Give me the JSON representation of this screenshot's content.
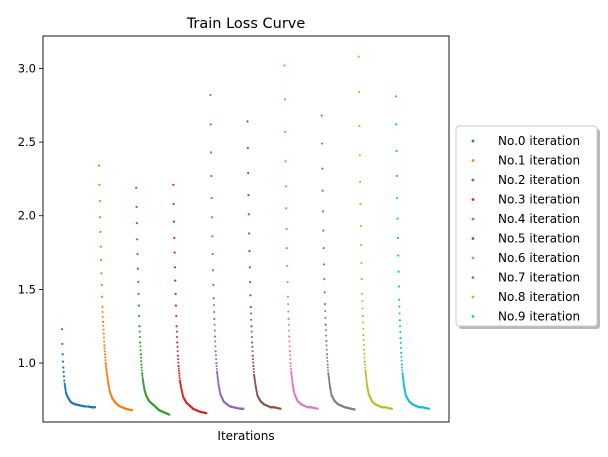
{
  "chart_data": {
    "type": "scatter",
    "title": "Train Loss Curve",
    "xlabel": "Iterations",
    "ylabel": "",
    "ylim": [
      0.6,
      3.22
    ],
    "yticks": [
      1.0,
      1.5,
      2.0,
      2.5,
      3.0
    ],
    "ytick_labels": [
      "1.0",
      "1.5",
      "2.0",
      "2.5",
      "3.0"
    ],
    "xticks": [],
    "grid": false,
    "legend_position": "center-right outside",
    "series": [
      {
        "name": "No.0 iteration",
        "color": "#1f77b4",
        "points": [
          [
            0,
            1.23
          ],
          [
            1,
            1.13
          ],
          [
            2,
            1.06
          ],
          [
            3,
            1.01
          ],
          [
            4,
            0.97
          ],
          [
            5,
            0.94
          ],
          [
            6,
            0.91
          ],
          [
            7,
            0.88
          ],
          [
            8,
            0.86
          ],
          [
            10,
            0.83
          ],
          [
            12,
            0.8
          ],
          [
            15,
            0.78
          ],
          [
            20,
            0.76
          ],
          [
            25,
            0.74
          ],
          [
            30,
            0.73
          ],
          [
            40,
            0.72
          ],
          [
            50,
            0.715
          ],
          [
            60,
            0.71
          ],
          [
            70,
            0.705
          ],
          [
            80,
            0.705
          ],
          [
            90,
            0.7
          ],
          [
            100,
            0.7
          ]
        ]
      },
      {
        "name": "No.1 iteration",
        "color": "#ff7f0e",
        "points": [
          [
            0,
            2.34
          ],
          [
            1,
            2.21
          ],
          [
            2,
            2.1
          ],
          [
            3,
            1.99
          ],
          [
            4,
            1.89
          ],
          [
            5,
            1.79
          ],
          [
            6,
            1.7
          ],
          [
            7,
            1.61
          ],
          [
            8,
            1.53
          ],
          [
            9,
            1.45
          ],
          [
            10,
            1.38
          ],
          [
            12,
            1.28
          ],
          [
            14,
            1.2
          ],
          [
            16,
            1.12
          ],
          [
            18,
            1.06
          ],
          [
            20,
            1.0
          ],
          [
            24,
            0.92
          ],
          [
            28,
            0.86
          ],
          [
            32,
            0.81
          ],
          [
            40,
            0.76
          ],
          [
            50,
            0.73
          ],
          [
            60,
            0.71
          ],
          [
            70,
            0.7
          ],
          [
            80,
            0.69
          ],
          [
            90,
            0.685
          ],
          [
            100,
            0.68
          ]
        ]
      },
      {
        "name": "No.2 iteration",
        "color": "#2ca02c",
        "points": [
          [
            0,
            2.19
          ],
          [
            1,
            2.06
          ],
          [
            2,
            1.95
          ],
          [
            3,
            1.84
          ],
          [
            4,
            1.74
          ],
          [
            5,
            1.64
          ],
          [
            6,
            1.55
          ],
          [
            7,
            1.47
          ],
          [
            8,
            1.39
          ],
          [
            9,
            1.32
          ],
          [
            10,
            1.25
          ],
          [
            12,
            1.14
          ],
          [
            14,
            1.06
          ],
          [
            16,
            0.99
          ],
          [
            18,
            0.93
          ],
          [
            20,
            0.89
          ],
          [
            25,
            0.82
          ],
          [
            30,
            0.78
          ],
          [
            40,
            0.74
          ],
          [
            50,
            0.72
          ],
          [
            60,
            0.7
          ],
          [
            70,
            0.68
          ],
          [
            80,
            0.67
          ],
          [
            90,
            0.66
          ],
          [
            100,
            0.65
          ]
        ]
      },
      {
        "name": "No.3 iteration",
        "color": "#d62728",
        "points": [
          [
            0,
            2.21
          ],
          [
            1,
            2.08
          ],
          [
            2,
            1.96
          ],
          [
            3,
            1.85
          ],
          [
            4,
            1.75
          ],
          [
            5,
            1.65
          ],
          [
            6,
            1.56
          ],
          [
            7,
            1.47
          ],
          [
            8,
            1.39
          ],
          [
            9,
            1.32
          ],
          [
            10,
            1.25
          ],
          [
            12,
            1.14
          ],
          [
            14,
            1.05
          ],
          [
            16,
            0.98
          ],
          [
            18,
            0.93
          ],
          [
            20,
            0.88
          ],
          [
            25,
            0.82
          ],
          [
            30,
            0.77
          ],
          [
            40,
            0.73
          ],
          [
            50,
            0.71
          ],
          [
            60,
            0.69
          ],
          [
            70,
            0.68
          ],
          [
            80,
            0.67
          ],
          [
            90,
            0.665
          ],
          [
            100,
            0.66
          ]
        ]
      },
      {
        "name": "No.4 iteration",
        "color": "#9467bd",
        "points": [
          [
            0,
            2.82
          ],
          [
            1,
            2.62
          ],
          [
            2,
            2.43
          ],
          [
            3,
            2.27
          ],
          [
            4,
            2.12
          ],
          [
            5,
            1.99
          ],
          [
            6,
            1.86
          ],
          [
            7,
            1.74
          ],
          [
            8,
            1.63
          ],
          [
            9,
            1.53
          ],
          [
            10,
            1.44
          ],
          [
            12,
            1.3
          ],
          [
            14,
            1.18
          ],
          [
            16,
            1.08
          ],
          [
            18,
            1.0
          ],
          [
            20,
            0.94
          ],
          [
            25,
            0.85
          ],
          [
            30,
            0.79
          ],
          [
            40,
            0.74
          ],
          [
            50,
            0.72
          ],
          [
            60,
            0.705
          ],
          [
            70,
            0.7
          ],
          [
            80,
            0.695
          ],
          [
            90,
            0.69
          ],
          [
            100,
            0.69
          ]
        ]
      },
      {
        "name": "No.5 iteration",
        "color": "#8c564b",
        "points": [
          [
            0,
            2.64
          ],
          [
            1,
            2.46
          ],
          [
            2,
            2.29
          ],
          [
            3,
            2.14
          ],
          [
            4,
            2.01
          ],
          [
            5,
            1.88
          ],
          [
            6,
            1.76
          ],
          [
            7,
            1.65
          ],
          [
            8,
            1.55
          ],
          [
            9,
            1.46
          ],
          [
            10,
            1.38
          ],
          [
            12,
            1.25
          ],
          [
            14,
            1.14
          ],
          [
            16,
            1.05
          ],
          [
            18,
            0.98
          ],
          [
            20,
            0.92
          ],
          [
            25,
            0.84
          ],
          [
            30,
            0.78
          ],
          [
            40,
            0.74
          ],
          [
            50,
            0.72
          ],
          [
            60,
            0.71
          ],
          [
            70,
            0.7
          ],
          [
            80,
            0.7
          ],
          [
            90,
            0.695
          ],
          [
            100,
            0.69
          ]
        ]
      },
      {
        "name": "No.6 iteration",
        "color": "#e377c2",
        "points": [
          [
            0,
            3.02
          ],
          [
            1,
            2.79
          ],
          [
            2,
            2.57
          ],
          [
            3,
            2.37
          ],
          [
            4,
            2.2
          ],
          [
            5,
            2.05
          ],
          [
            6,
            1.91
          ],
          [
            7,
            1.78
          ],
          [
            8,
            1.66
          ],
          [
            9,
            1.55
          ],
          [
            10,
            1.45
          ],
          [
            12,
            1.3
          ],
          [
            14,
            1.18
          ],
          [
            16,
            1.08
          ],
          [
            18,
            1.0
          ],
          [
            20,
            0.94
          ],
          [
            25,
            0.85
          ],
          [
            30,
            0.79
          ],
          [
            40,
            0.74
          ],
          [
            50,
            0.72
          ],
          [
            60,
            0.71
          ],
          [
            70,
            0.7
          ],
          [
            80,
            0.7
          ],
          [
            90,
            0.695
          ],
          [
            100,
            0.69
          ]
        ]
      },
      {
        "name": "No.7 iteration",
        "color": "#7f7f7f",
        "points": [
          [
            0,
            2.68
          ],
          [
            1,
            2.49
          ],
          [
            2,
            2.32
          ],
          [
            3,
            2.17
          ],
          [
            4,
            2.03
          ],
          [
            5,
            1.9
          ],
          [
            6,
            1.78
          ],
          [
            7,
            1.67
          ],
          [
            8,
            1.57
          ],
          [
            9,
            1.48
          ],
          [
            10,
            1.4
          ],
          [
            12,
            1.26
          ],
          [
            14,
            1.15
          ],
          [
            16,
            1.06
          ],
          [
            18,
            0.99
          ],
          [
            20,
            0.93
          ],
          [
            25,
            0.84
          ],
          [
            30,
            0.78
          ],
          [
            40,
            0.74
          ],
          [
            50,
            0.72
          ],
          [
            60,
            0.71
          ],
          [
            70,
            0.7
          ],
          [
            80,
            0.695
          ],
          [
            90,
            0.69
          ],
          [
            100,
            0.685
          ]
        ]
      },
      {
        "name": "No.8 iteration",
        "color": "#bcbd22",
        "points": [
          [
            0,
            3.08
          ],
          [
            1,
            2.84
          ],
          [
            2,
            2.61
          ],
          [
            3,
            2.41
          ],
          [
            4,
            2.23
          ],
          [
            5,
            2.08
          ],
          [
            6,
            1.93
          ],
          [
            7,
            1.8
          ],
          [
            8,
            1.68
          ],
          [
            9,
            1.57
          ],
          [
            10,
            1.47
          ],
          [
            12,
            1.32
          ],
          [
            14,
            1.19
          ],
          [
            16,
            1.09
          ],
          [
            18,
            1.01
          ],
          [
            20,
            0.95
          ],
          [
            25,
            0.85
          ],
          [
            30,
            0.79
          ],
          [
            40,
            0.74
          ],
          [
            50,
            0.72
          ],
          [
            60,
            0.71
          ],
          [
            70,
            0.7
          ],
          [
            80,
            0.7
          ],
          [
            90,
            0.695
          ],
          [
            100,
            0.69
          ]
        ]
      },
      {
        "name": "No.9 iteration",
        "color": "#17becf",
        "points": [
          [
            0,
            2.81
          ],
          [
            1,
            2.62
          ],
          [
            2,
            2.44
          ],
          [
            3,
            2.27
          ],
          [
            4,
            2.12
          ],
          [
            5,
            1.98
          ],
          [
            6,
            1.85
          ],
          [
            7,
            1.73
          ],
          [
            8,
            1.62
          ],
          [
            9,
            1.52
          ],
          [
            10,
            1.43
          ],
          [
            12,
            1.29
          ],
          [
            14,
            1.17
          ],
          [
            16,
            1.07
          ],
          [
            18,
            0.99
          ],
          [
            20,
            0.93
          ],
          [
            25,
            0.84
          ],
          [
            30,
            0.78
          ],
          [
            40,
            0.74
          ],
          [
            50,
            0.72
          ],
          [
            60,
            0.71
          ],
          [
            70,
            0.7
          ],
          [
            80,
            0.7
          ],
          [
            90,
            0.695
          ],
          [
            100,
            0.69
          ]
        ]
      }
    ]
  }
}
